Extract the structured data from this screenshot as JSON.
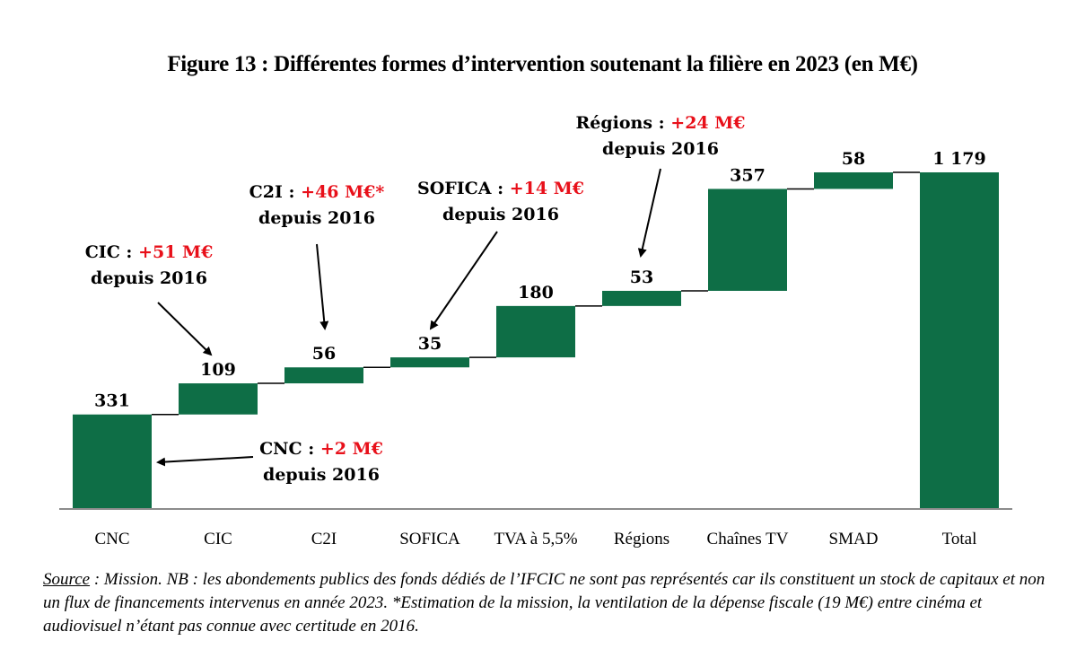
{
  "title": "Figure 13 : Différentes formes d’intervention soutenant la filière en 2023 (en M€)",
  "colors": {
    "bar": "#0e6e46",
    "connector": "#000000",
    "axis": "#8c8c8c",
    "highlight": "#e8101a"
  },
  "chart_data": {
    "type": "bar",
    "subtype": "waterfall",
    "title": "Figure 13 : Différentes formes d’intervention soutenant la filière en 2023 (en M€)",
    "xlabel": "",
    "ylabel": "",
    "unit": "M€",
    "ylim": [
      0,
      1250
    ],
    "grid": false,
    "legend": "none",
    "categories": [
      "CNC",
      "CIC",
      "C2I",
      "SOFICA",
      "TVA à 5,5%",
      "Régions",
      "Chaînes TV",
      "SMAD",
      "Total"
    ],
    "values": [
      331,
      109,
      56,
      35,
      180,
      53,
      357,
      58,
      1179
    ],
    "value_labels": [
      "331",
      "109",
      "56",
      "35",
      "180",
      "53",
      "357",
      "58",
      "1 179"
    ],
    "is_total": [
      false,
      false,
      false,
      false,
      false,
      false,
      false,
      false,
      true
    ],
    "annotations": [
      {
        "target": "CNC",
        "prefix": "CNC : ",
        "change": "+2 M€",
        "suffix": "depuis 2016"
      },
      {
        "target": "CIC",
        "prefix": "CIC : ",
        "change": "+51 M€",
        "suffix": "depuis 2016"
      },
      {
        "target": "C2I",
        "prefix": "C2I : ",
        "change": "+46 M€*",
        "suffix": "depuis 2016"
      },
      {
        "target": "SOFICA",
        "prefix": "SOFICA : ",
        "change": "+14 M€",
        "suffix": "depuis 2016"
      },
      {
        "target": "Régions",
        "prefix": "Régions : ",
        "change": "+24 M€",
        "suffix": "depuis 2016"
      }
    ]
  },
  "source": {
    "label": "Source",
    "text": " : Mission. NB : les abondements publics des fonds dédiés de l’IFCIC ne sont pas représentés car ils constituent un stock de capitaux et non un flux de financements intervenus en année 2023. *Estimation de la mission, la ventilation de la dépense fiscale (19 M€) entre cinéma et audiovisuel n’étant pas connue avec certitude en 2016."
  }
}
